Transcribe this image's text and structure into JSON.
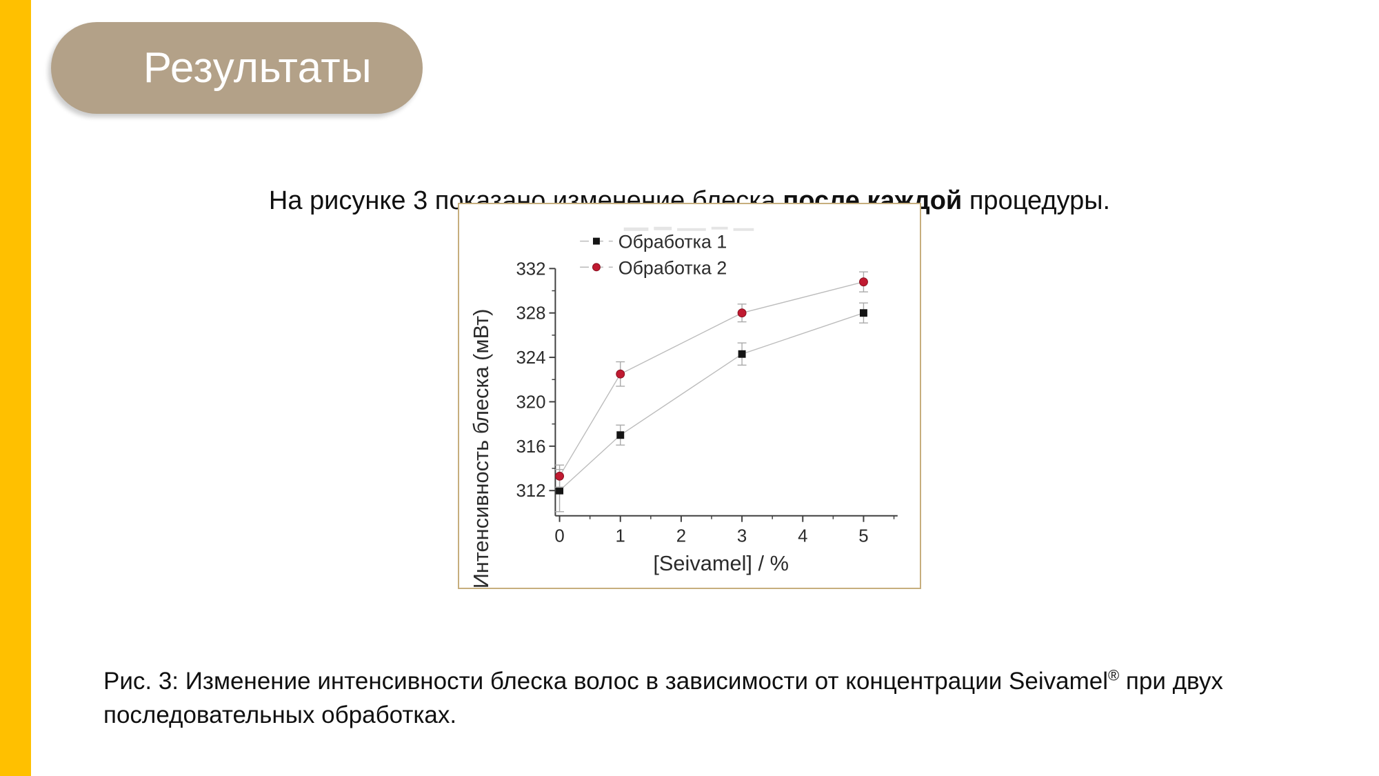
{
  "slide": {
    "title": "Результаты",
    "intro": {
      "pre": "На рисунке 3 показано изменение блеска ",
      "bold": "после каждой",
      "post": " процедуры."
    },
    "caption": {
      "pre": "Рис. 3: Изменение интенсивности блеска волос в зависимости от концентрации Seivamel",
      "sup": "®",
      "mid": " при двух",
      "line2": "последовательных обработках."
    }
  },
  "colors": {
    "accent_stripe": "#FFC000",
    "title_pill": "#B3A188",
    "title_text": "#FFFFFF",
    "figure_border": "#C6AE7D",
    "axis": "#3F3F3F",
    "tick_label": "#2B2B2B",
    "connector_line": "#BCBCBC",
    "error_bar": "#A9A9A9",
    "legend_remnant": "#CDCDCD",
    "series1": "#151515",
    "series2": "#C01A31"
  },
  "chart_data": {
    "type": "line",
    "x": [
      0,
      1,
      3,
      5
    ],
    "series": [
      {
        "name": "Обработка 1",
        "marker": "square",
        "color": "#151515",
        "values": [
          312.0,
          317.0,
          324.3,
          328.0
        ],
        "errors": [
          1.9,
          0.9,
          1.0,
          0.9
        ]
      },
      {
        "name": "Обработка 2",
        "marker": "circle",
        "color": "#C01A31",
        "values": [
          313.3,
          322.5,
          328.0,
          330.8
        ],
        "errors": [
          1.0,
          1.1,
          0.8,
          0.9
        ]
      }
    ],
    "xlabel": "[Seivamel] / %",
    "ylabel": "Интенсивность блеска (мВт)",
    "xlim": [
      -0.07,
      5.56
    ],
    "ylim": [
      309.73,
      332
    ],
    "x_major_ticks": [
      0,
      1,
      2,
      3,
      4,
      5
    ],
    "x_minor_ticks": [
      0.5,
      1.5,
      2.5,
      3.5,
      4.5,
      5.5
    ],
    "y_major_ticks": [
      312,
      316,
      320,
      324,
      328,
      332
    ],
    "y_minor_ticks": [
      314,
      318,
      322,
      326,
      330
    ],
    "grid": false,
    "legend_position": "top-left"
  }
}
